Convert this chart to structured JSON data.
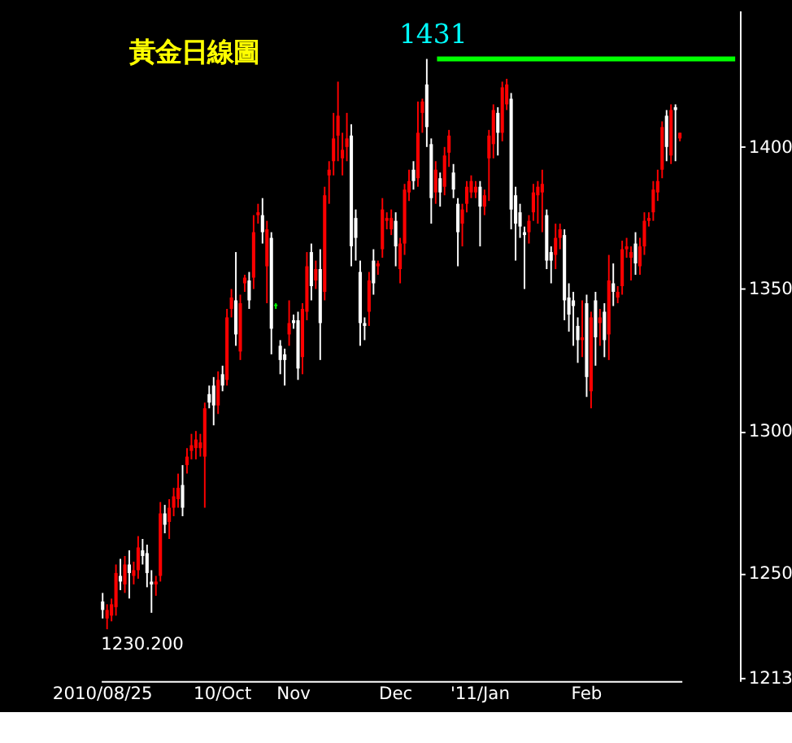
{
  "chart_data": {
    "type": "candlestick",
    "title": "黃金日線圖",
    "categories": [
      "2010/08/25",
      null,
      null,
      null,
      null,
      null,
      null,
      null,
      null,
      null,
      null,
      null,
      null,
      null,
      null,
      null,
      null,
      null,
      null,
      null,
      null,
      null,
      null,
      null,
      null,
      null,
      null,
      "10/Oct",
      null,
      null,
      null,
      null,
      null,
      null,
      null,
      null,
      null,
      null,
      null,
      null,
      null,
      null,
      null,
      "Nov",
      null,
      null,
      null,
      null,
      null,
      null,
      null,
      null,
      null,
      null,
      null,
      null,
      null,
      null,
      null,
      null,
      null,
      null,
      null,
      null,
      null,
      null,
      "Dec",
      null,
      null,
      null,
      null,
      null,
      null,
      null,
      null,
      null,
      null,
      null,
      null,
      null,
      null,
      null,
      null,
      null,
      null,
      "'11/Jan",
      null,
      null,
      null,
      null,
      null,
      null,
      null,
      null,
      null,
      null,
      null,
      null,
      null,
      null,
      null,
      null,
      null,
      null,
      null,
      null,
      null,
      null,
      null,
      "Feb",
      null,
      null,
      null,
      null,
      null,
      null,
      null,
      null,
      null,
      null,
      null,
      null,
      null,
      null,
      null,
      null,
      null,
      null,
      null,
      null,
      null
    ],
    "ohlc": [
      [
        1240,
        1243,
        1234,
        1237
      ],
      [
        1234,
        1239,
        1230.2,
        1237
      ],
      [
        1235,
        1241,
        1233,
        1239
      ],
      [
        1238,
        1253,
        1235,
        1250
      ],
      [
        1249,
        1255,
        1244,
        1247
      ],
      [
        1246,
        1256,
        1243,
        1253
      ],
      [
        1253,
        1258,
        1241,
        1250
      ],
      [
        1249,
        1254,
        1246,
        1251
      ],
      [
        1251,
        1263,
        1248,
        1259
      ],
      [
        1258,
        1262,
        1253,
        1256
      ],
      [
        1257,
        1260,
        1245,
        1250
      ],
      [
        1247,
        1251,
        1236,
        1246
      ],
      [
        1246,
        1249,
        1242,
        1247
      ],
      [
        1249,
        1275,
        1247,
        1271
      ],
      [
        1271,
        1274,
        1264,
        1267
      ],
      [
        1268,
        1276,
        1262,
        1273
      ],
      [
        1273,
        1280,
        1270,
        1277
      ],
      [
        1276,
        1285,
        1273,
        1280
      ],
      [
        1281,
        1288,
        1270,
        1273
      ],
      [
        1288,
        1294,
        1285,
        1291
      ],
      [
        1293,
        1299,
        1290,
        1295
      ],
      [
        1294,
        1300,
        1290,
        1297
      ],
      [
        1294,
        1299,
        1291,
        1296
      ],
      [
        1291,
        1310,
        1273,
        1308
      ],
      [
        1313,
        1316,
        1308,
        1310
      ],
      [
        1316,
        1319,
        1302,
        1309
      ],
      [
        1309,
        1321,
        1306,
        1318
      ],
      [
        1320,
        1323,
        1314,
        1316
      ],
      [
        1318,
        1343,
        1316,
        1340
      ],
      [
        1343,
        1350,
        1340,
        1347
      ],
      [
        1346,
        1363,
        1330,
        1334
      ],
      [
        1328,
        1348,
        1325,
        1345
      ],
      [
        1352,
        1355,
        1349,
        1354
      ],
      [
        1353,
        1356,
        1343,
        1346
      ],
      [
        1354,
        1376,
        1350,
        1370
      ],
      [
        1376,
        1380,
        1373,
        1377
      ],
      [
        1376,
        1382,
        1366,
        1370
      ],
      [
        1358,
        1374,
        1345,
        1371
      ],
      [
        1368,
        1370,
        1327,
        1336
      ],
      [
        1344,
        1345,
        1343,
        1344.5
      ],
      [
        1330,
        1332,
        1320,
        1325
      ],
      [
        1327,
        1329,
        1316,
        1325
      ],
      [
        1334,
        1346,
        1330,
        1338
      ],
      [
        1339,
        1341,
        1336,
        1338
      ],
      [
        1339,
        1342,
        1318,
        1322
      ],
      [
        1326,
        1345,
        1320,
        1343
      ],
      [
        1342,
        1363,
        1339,
        1358
      ],
      [
        1363,
        1366,
        1346,
        1351
      ],
      [
        1353,
        1360,
        1350,
        1357
      ],
      [
        1357,
        1364,
        1325,
        1338
      ],
      [
        1349,
        1386,
        1346,
        1383
      ],
      [
        1390,
        1395,
        1380,
        1392
      ],
      [
        1395,
        1412,
        1390,
        1403
      ],
      [
        1404,
        1423,
        1395,
        1411
      ],
      [
        1396,
        1405,
        1390,
        1399
      ],
      [
        1400,
        1412,
        1395,
        1403
      ],
      [
        1404,
        1408,
        1358,
        1365
      ],
      [
        1375,
        1378,
        1360,
        1368
      ],
      [
        1356,
        1360,
        1330,
        1338
      ],
      [
        1338,
        1340,
        1332,
        1337
      ],
      [
        1342,
        1356,
        1337,
        1353
      ],
      [
        1360,
        1364,
        1348,
        1352
      ],
      [
        1358,
        1360,
        1355,
        1359
      ],
      [
        1364,
        1382,
        1361,
        1378
      ],
      [
        1374,
        1377,
        1371,
        1375
      ],
      [
        1371,
        1378,
        1369,
        1375
      ],
      [
        1374,
        1377,
        1358,
        1365
      ],
      [
        1357,
        1368,
        1352,
        1366
      ],
      [
        1366,
        1387,
        1362,
        1385
      ],
      [
        1384,
        1392,
        1381,
        1388
      ],
      [
        1392,
        1395,
        1385,
        1388
      ],
      [
        1389,
        1416,
        1386,
        1405
      ],
      [
        1412,
        1417,
        1405,
        1416
      ],
      [
        1422,
        1431,
        1400,
        1407
      ],
      [
        1401,
        1403,
        1373,
        1382
      ],
      [
        1384,
        1395,
        1380,
        1392
      ],
      [
        1389,
        1391,
        1379,
        1384
      ],
      [
        1386,
        1400,
        1383,
        1397
      ],
      [
        1398,
        1406,
        1393,
        1404
      ],
      [
        1391,
        1394,
        1382,
        1385
      ],
      [
        1380,
        1382,
        1358,
        1370
      ],
      [
        1373,
        1380,
        1365,
        1378
      ],
      [
        1380,
        1388,
        1377,
        1386
      ],
      [
        1384,
        1390,
        1382,
        1388
      ],
      [
        1384,
        1388,
        1382,
        1386
      ],
      [
        1386,
        1388,
        1365,
        1379
      ],
      [
        1379,
        1385,
        1376,
        1383
      ],
      [
        1396,
        1406,
        1381,
        1404
      ],
      [
        1401,
        1415,
        1396,
        1413
      ],
      [
        1412,
        1414,
        1397,
        1405
      ],
      [
        1405,
        1423,
        1402,
        1421
      ],
      [
        1415,
        1424,
        1413,
        1422
      ],
      [
        1417,
        1419,
        1371,
        1378
      ],
      [
        1383,
        1386,
        1360,
        1373
      ],
      [
        1377,
        1380,
        1368,
        1372
      ],
      [
        1370,
        1372,
        1350,
        1369
      ],
      [
        1370,
        1376,
        1366,
        1374
      ],
      [
        1377,
        1387,
        1374,
        1384
      ],
      [
        1383,
        1388,
        1373,
        1386
      ],
      [
        1384,
        1392,
        1370,
        1387
      ],
      [
        1376,
        1378,
        1357,
        1360
      ],
      [
        1363,
        1365,
        1352,
        1360
      ],
      [
        1362,
        1373,
        1357,
        1368
      ],
      [
        1368,
        1373,
        1364,
        1371
      ],
      [
        1369,
        1371,
        1339,
        1346
      ],
      [
        1347,
        1352,
        1335,
        1341
      ],
      [
        1346,
        1349,
        1330,
        1344
      ],
      [
        1337,
        1340,
        1324,
        1332
      ],
      [
        1332,
        1346,
        1326,
        1333
      ],
      [
        1345,
        1348,
        1312,
        1319
      ],
      [
        1314,
        1342,
        1308,
        1340
      ],
      [
        1346,
        1349,
        1323,
        1333
      ],
      [
        1338,
        1343,
        1330,
        1340
      ],
      [
        1342,
        1345,
        1326,
        1332
      ],
      [
        1334,
        1362,
        1325,
        1353
      ],
      [
        1352,
        1359,
        1344,
        1349
      ],
      [
        1347,
        1351,
        1345,
        1349
      ],
      [
        1351,
        1367,
        1348,
        1364
      ],
      [
        1364,
        1368,
        1361,
        1365
      ],
      [
        1361,
        1365,
        1353,
        1363
      ],
      [
        1366,
        1370,
        1355,
        1359
      ],
      [
        1358,
        1368,
        1355,
        1365
      ],
      [
        1365,
        1377,
        1362,
        1374
      ],
      [
        1374,
        1377,
        1372,
        1375
      ],
      [
        1377,
        1388,
        1374,
        1385
      ],
      [
        1384,
        1392,
        1381,
        1388
      ],
      [
        1392,
        1409,
        1389,
        1407
      ],
      [
        1411,
        1413,
        1395,
        1400
      ],
      [
        1397,
        1415,
        1394,
        1413
      ],
      [
        1414,
        1415,
        1395,
        1413
      ],
      [
        1403,
        1405,
        1402,
        1405
      ]
    ],
    "colors": [
      "#ffffff",
      "#ff0000",
      "#ff0000",
      "#ff0000",
      "#ffffff",
      "#ff0000",
      "#ffffff",
      "#ff0000",
      "#ff0000",
      "#ffffff",
      "#ffffff",
      "#ffffff",
      "#ff0000",
      "#ff0000",
      "#ffffff",
      "#ff0000",
      "#ff0000",
      "#ff0000",
      "#ffffff",
      "#ff0000",
      "#ff0000",
      "#ff0000",
      "#ff0000",
      "#ff0000",
      "#ffffff",
      "#ffffff",
      "#ff0000",
      "#ffffff",
      "#ff0000",
      "#ff0000",
      "#ffffff",
      "#ff0000",
      "#ff0000",
      "#ffffff",
      "#ff0000",
      "#ff0000",
      "#ffffff",
      "#ff0000",
      "#ffffff",
      "#00ff00",
      "#ffffff",
      "#ffffff",
      "#ff0000",
      "#ffffff",
      "#ffffff",
      "#ff0000",
      "#ff0000",
      "#ffffff",
      "#ff0000",
      "#ffffff",
      "#ff0000",
      "#ff0000",
      "#ff0000",
      "#ff0000",
      "#ff0000",
      "#ff0000",
      "#ffffff",
      "#ffffff",
      "#ffffff",
      "#ffffff",
      "#ff0000",
      "#ffffff",
      "#ff0000",
      "#ff0000",
      "#ff0000",
      "#ff0000",
      "#ffffff",
      "#ff0000",
      "#ff0000",
      "#ff0000",
      "#ffffff",
      "#ff0000",
      "#ff0000",
      "#ffffff",
      "#ffffff",
      "#ff0000",
      "#ffffff",
      "#ff0000",
      "#ff0000",
      "#ffffff",
      "#ffffff",
      "#ff0000",
      "#ff0000",
      "#ff0000",
      "#ff0000",
      "#ffffff",
      "#ff0000",
      "#ff0000",
      "#ff0000",
      "#ffffff",
      "#ff0000",
      "#ff0000",
      "#ffffff",
      "#ffffff",
      "#ffffff",
      "#ffffff",
      "#ff0000",
      "#ff0000",
      "#ff0000",
      "#ff0000",
      "#ffffff",
      "#ffffff",
      "#ff0000",
      "#ff0000",
      "#ffffff",
      "#ffffff",
      "#ffffff",
      "#ffffff",
      "#ff0000",
      "#ffffff",
      "#ff0000",
      "#ffffff",
      "#ff0000",
      "#ffffff",
      "#ff0000",
      "#ffffff",
      "#ff0000",
      "#ff0000",
      "#ff0000",
      "#ff0000",
      "#ffffff",
      "#ff0000",
      "#ff0000",
      "#ff0000",
      "#ff0000",
      "#ff0000",
      "#ff0000",
      "#ffffff",
      "#ff0000",
      "#ffffff",
      "#ff0000"
    ],
    "ylim": [
      1212,
      1448
    ],
    "yticks": [
      1213,
      1250,
      1300,
      1350,
      1400
    ],
    "ref_lines": [
      {
        "axis": "y",
        "value": 1431,
        "label": "1431",
        "color": "#00ff00"
      }
    ],
    "annotations": [
      "1230.200"
    ],
    "grid": false
  }
}
